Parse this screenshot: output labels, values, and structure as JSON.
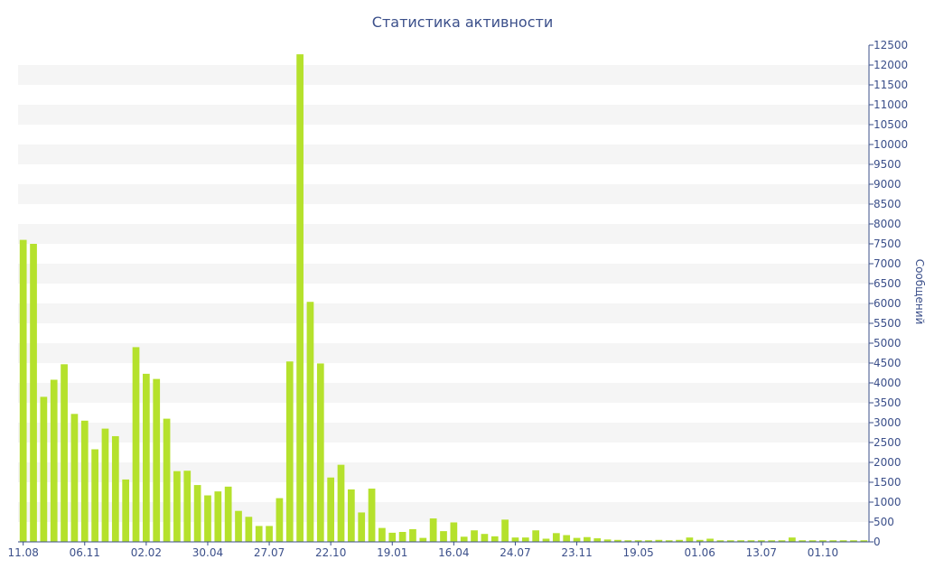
{
  "chart_data": {
    "type": "bar",
    "title": "Статистика активности",
    "ylabel": "Сообщений",
    "xlabel": "",
    "ylim": [
      0,
      12500
    ],
    "y_ticks": [
      0,
      500,
      1000,
      1500,
      2000,
      2500,
      3000,
      3500,
      4000,
      4500,
      5000,
      5500,
      6000,
      6500,
      7000,
      7500,
      8000,
      8500,
      9000,
      9500,
      10000,
      10500,
      11000,
      11500,
      12000,
      12500
    ],
    "y_axis_position": "right",
    "grid": "horizontal alternating bands",
    "bar_color": "#b5e12c",
    "axis_color": "#3b4f8a",
    "band_color": "#f5f5f5",
    "x_tick_labels": [
      {
        "label": "11.08",
        "index": 0
      },
      {
        "label": "06.11",
        "index": 6
      },
      {
        "label": "02.02",
        "index": 12
      },
      {
        "label": "30.04",
        "index": 18
      },
      {
        "label": "27.07",
        "index": 24
      },
      {
        "label": "22.10",
        "index": 30
      },
      {
        "label": "19.01",
        "index": 36
      },
      {
        "label": "16.04",
        "index": 42
      },
      {
        "label": "24.07",
        "index": 48
      },
      {
        "label": "23.11",
        "index": 54
      },
      {
        "label": "19.05",
        "index": 60
      },
      {
        "label": "01.06",
        "index": 66
      },
      {
        "label": "13.07",
        "index": 72
      },
      {
        "label": "01.10",
        "index": 78
      }
    ],
    "values": [
      7600,
      7500,
      3650,
      4080,
      4470,
      3220,
      3050,
      2330,
      2850,
      2660,
      1570,
      4900,
      4230,
      4100,
      3100,
      1780,
      1790,
      1430,
      1170,
      1270,
      1390,
      780,
      630,
      400,
      400,
      1100,
      4540,
      12270,
      6040,
      4490,
      1620,
      1940,
      1320,
      740,
      1340,
      350,
      230,
      250,
      320,
      100,
      590,
      270,
      490,
      130,
      290,
      200,
      140,
      560,
      110,
      110,
      290,
      80,
      220,
      170,
      100,
      120,
      90,
      60,
      50,
      40,
      40,
      40,
      50,
      40,
      50,
      110,
      50,
      80,
      40,
      40,
      40,
      40,
      40,
      40,
      40,
      110,
      40,
      40,
      40,
      40,
      40,
      40,
      40
    ]
  }
}
